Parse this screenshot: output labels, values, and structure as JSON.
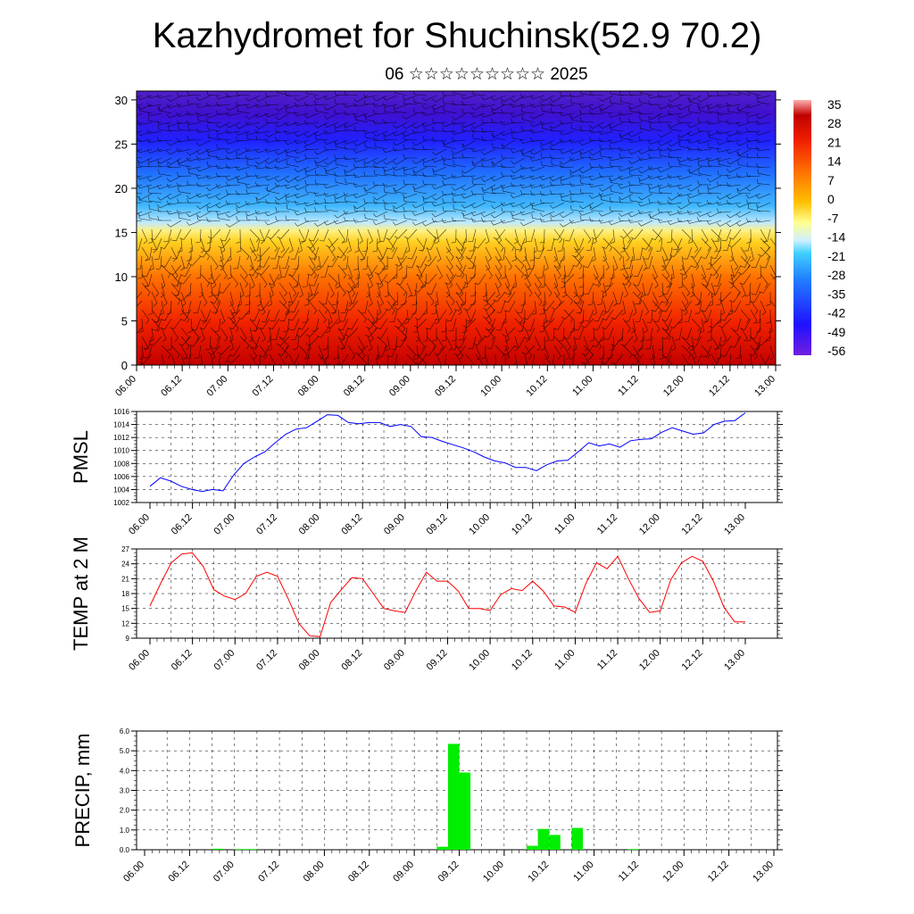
{
  "title": "Kazhydromet for Shuchinsk(52.9 70.2)",
  "subtitle": "06 ☆☆☆☆☆☆☆☆☆ 2025",
  "time_ticks": [
    "06.00",
    "06.12",
    "07.00",
    "07.12",
    "08.00",
    "08.12",
    "09.00",
    "09.12",
    "10.00",
    "10.12",
    "11.00",
    "11.12",
    "12.00",
    "12.12",
    "13.00"
  ],
  "chart_data": [
    {
      "type": "heatmap",
      "y_ticks": [
        "0",
        "5",
        "10",
        "15",
        "20",
        "25",
        "30"
      ],
      "ylim": [
        0,
        31
      ],
      "colorbar_labels": [
        "35",
        "28",
        "21",
        "14",
        "7",
        "0",
        "-7",
        "-14",
        "-21",
        "-28",
        "-35",
        "-42",
        "-49",
        "-56"
      ],
      "colorbar_range": [
        -63,
        42
      ],
      "description_layers": "temperature shading with wind barbs",
      "colors": {
        "hot": "#d00000",
        "warm": "#ffc000",
        "cool": "#40c0ff",
        "cold": "#3010ff"
      }
    },
    {
      "type": "line",
      "ylabel": "PMSL",
      "y_ticks": [
        "1002",
        "1004",
        "1006",
        "1008",
        "1010",
        "1012",
        "1014",
        "1016"
      ],
      "ylim": [
        1002,
        1016
      ],
      "color": "#0000ff",
      "values": [
        1004.5,
        1005.8,
        1005.3,
        1004.5,
        1004.0,
        1003.7,
        1004.0,
        1003.8,
        1006.2,
        1008.0,
        1009.0,
        1009.8,
        1011.2,
        1012.5,
        1013.3,
        1013.5,
        1014.5,
        1015.5,
        1015.4,
        1014.3,
        1014.1,
        1014.3,
        1014.3,
        1013.7,
        1014.0,
        1013.7,
        1012.1,
        1012.0,
        1011.4,
        1010.9,
        1010.4,
        1009.8,
        1009.0,
        1008.4,
        1008.1,
        1007.4,
        1007.4,
        1006.9,
        1007.8,
        1008.4,
        1008.5,
        1009.8,
        1011.2,
        1010.7,
        1011.0,
        1010.5,
        1011.5,
        1011.7,
        1011.8,
        1012.8,
        1013.5,
        1013.0,
        1012.5,
        1012.7,
        1014.0,
        1014.5,
        1014.6,
        1015.8
      ]
    },
    {
      "type": "line",
      "ylabel": "TEMP at 2 M",
      "y_ticks": [
        "9",
        "12",
        "15",
        "18",
        "21",
        "24",
        "27"
      ],
      "ylim": [
        9,
        27
      ],
      "color": "#ff0000",
      "values": [
        15.5,
        20.0,
        24.2,
        26.0,
        26.2,
        23.5,
        18.8,
        17.5,
        16.8,
        18.0,
        21.5,
        22.3,
        21.5,
        17.0,
        12.0,
        9.5,
        9.3,
        16.2,
        18.8,
        21.2,
        21.0,
        18.0,
        15.0,
        14.5,
        14.2,
        18.5,
        22.3,
        20.5,
        20.5,
        18.5,
        15.0,
        15.0,
        14.6,
        17.8,
        19.0,
        18.6,
        20.5,
        18.5,
        15.5,
        15.3,
        14.2,
        20.0,
        24.2,
        23.0,
        25.5,
        21.0,
        17.0,
        14.2,
        14.5,
        20.8,
        24.2,
        25.5,
        24.5,
        20.5,
        15.2,
        12.3,
        12.3
      ]
    },
    {
      "type": "bar",
      "ylabel": "PRECIP, mm",
      "y_ticks": [
        "0.0",
        "1.0",
        "2.0",
        "3.0",
        "4.0",
        "5.0",
        "6.0"
      ],
      "ylim": [
        0,
        6
      ],
      "color": "#00ee00",
      "bars": [
        {
          "x": 6.5,
          "value": 0.05
        },
        {
          "x": 8.5,
          "value": 0.03
        },
        {
          "x": 9.5,
          "value": 0.03
        },
        {
          "x": 26.5,
          "value": 0.15
        },
        {
          "x": 27.5,
          "value": 5.35
        },
        {
          "x": 28.5,
          "value": 3.9
        },
        {
          "x": 34.5,
          "value": 0.2
        },
        {
          "x": 35.5,
          "value": 1.05
        },
        {
          "x": 36.5,
          "value": 0.75
        },
        {
          "x": 38.5,
          "value": 1.1
        },
        {
          "x": 43.5,
          "value": 0.03
        }
      ]
    }
  ]
}
